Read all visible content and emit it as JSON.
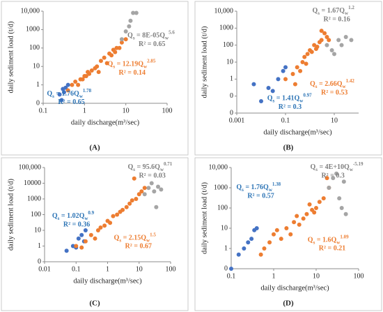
{
  "chart_data": [
    {
      "type": "scatter",
      "panel": "(A)",
      "xlabel": "daily discharge(m³/sec)",
      "ylabel": "daily sediment load (t/d)",
      "xscale": "log",
      "yscale": "log",
      "xlim": [
        0.1,
        100
      ],
      "ylim": [
        0.1,
        10000
      ],
      "xticks": [
        0.1,
        1,
        10,
        100
      ],
      "yticks": [
        {
          "value": 0.1,
          "label": "0"
        },
        1,
        10,
        100,
        1000,
        {
          "value": 10000,
          "label": "10,000"
        }
      ],
      "series": [
        {
          "color": "#4472c4",
          "x": [
            0.25,
            0.3,
            0.28,
            0.35,
            0.4,
            0.32
          ],
          "values": [
            0.3,
            0.6,
            0.15,
            0.7,
            1,
            0.4
          ],
          "equation": {
            "q": "Q",
            "s": "s",
            "coef": " = 1.76Q",
            "w": "w",
            "exp": "1.78",
            "r2": "R² = 0.65"
          }
        },
        {
          "color": "#ed7d31",
          "x": [
            0.4,
            0.5,
            0.6,
            0.8,
            1,
            1.2,
            1.5,
            2,
            2.5,
            3,
            4,
            5,
            6,
            8,
            10,
            0.7,
            1.1,
            1.8,
            3.5,
            5.5,
            2.2,
            1.3,
            0.9,
            7,
            4.5
          ],
          "values": [
            0.5,
            1,
            1.5,
            2,
            3,
            5,
            6,
            10,
            20,
            30,
            50,
            80,
            100,
            200,
            300,
            1,
            3,
            8,
            15,
            60,
            5,
            4,
            2,
            100,
            40
          ],
          "equation": {
            "q": "Q",
            "s": "s",
            "coef": " = 12.19Q",
            "w": "w",
            "exp": "2.85",
            "r2": "R² = 0.14"
          }
        },
        {
          "color": "#a5a5a5",
          "x": [
            8,
            10,
            12,
            13,
            15,
            18
          ],
          "values": [
            300,
            800,
            1500,
            3000,
            8000,
            8000
          ],
          "equation": {
            "q": "Q",
            "s": "s",
            "coef": " = 8E-05Q",
            "w": "w",
            "exp": "5.6",
            "r2": "R² = 0.65"
          }
        }
      ]
    },
    {
      "type": "scatter",
      "panel": "(B)",
      "xlabel": "daily discharge(m³/sec)",
      "ylabel": "daily sediment load (t/d)",
      "xscale": "log",
      "yscale": "log",
      "xlim": [
        0.001,
        100
      ],
      "ylim": [
        0.01,
        10000
      ],
      "xticks": [
        0.001,
        0.1,
        10
      ],
      "yticks": [
        {
          "value": 0.01,
          "label": "0"
        },
        {
          "value": 0.1,
          "label": "0"
        },
        1,
        10,
        100,
        1000,
        {
          "value": 10000,
          "label": "10,000"
        }
      ],
      "series": [
        {
          "color": "#4472c4",
          "x": [
            0.005,
            0.01,
            0.02,
            0.03,
            0.05,
            0.08,
            0.1
          ],
          "values": [
            0.5,
            0.05,
            0.3,
            0.2,
            1,
            3,
            5
          ],
          "equation": {
            "q": "Q",
            "s": "s",
            "coef": " = 1.41Q",
            "w": "w",
            "exp": "0.97",
            "r2": "R² = 0.3"
          }
        },
        {
          "color": "#ed7d31",
          "x": [
            0.1,
            0.2,
            0.3,
            0.5,
            0.8,
            1,
            1.5,
            2,
            3,
            5,
            0.4,
            0.6,
            1.2,
            2.5,
            4,
            0.25,
            0.7,
            1.8,
            3,
            6
          ],
          "values": [
            1,
            2,
            5,
            10,
            30,
            50,
            100,
            80,
            200,
            300,
            3,
            20,
            40,
            150,
            500,
            0.5,
            8,
            60,
            700,
            200
          ],
          "equation": {
            "q": "Q",
            "s": "s",
            "coef": " = 2.66Q",
            "w": "w",
            "exp": "1.42",
            "r2": "R² = 0.53"
          }
        },
        {
          "color": "#a5a5a5",
          "x": [
            5,
            8,
            10,
            15,
            20,
            30,
            50
          ],
          "values": [
            100,
            50,
            30,
            200,
            100,
            300,
            200
          ],
          "equation": {
            "q": "Q",
            "s": "s",
            "coef": " = 1.67Q",
            "w": "w",
            "exp": "1.2",
            "r2": "R² = 0.16"
          }
        }
      ]
    },
    {
      "type": "scatter",
      "panel": "(C)",
      "xlabel": "daily discharge(m³/sec)",
      "ylabel": "daily sediment load (t/d)",
      "xscale": "log",
      "yscale": "log",
      "xlim": [
        0.01,
        100
      ],
      "ylim": [
        0.1,
        100000
      ],
      "xticks": [
        0.01,
        0.1,
        1,
        10,
        100
      ],
      "yticks": [
        {
          "value": 0.1,
          "label": "0"
        },
        1,
        10,
        100,
        1000,
        10000,
        {
          "value": 100000,
          "label": "100,000"
        }
      ],
      "series": [
        {
          "color": "#4472c4",
          "x": [
            0.05,
            0.08,
            0.1,
            0.12,
            0.15,
            0.18,
            0.2
          ],
          "values": [
            0.5,
            1,
            0.8,
            3,
            5,
            2,
            10
          ],
          "equation": {
            "q": "Q",
            "s": "s",
            "coef": " = 1.02Q",
            "w": "w",
            "exp": "0.9",
            "r2": "R² = 0.36"
          }
        },
        {
          "color": "#ed7d31",
          "x": [
            0.1,
            0.2,
            0.3,
            0.5,
            0.8,
            1,
            1.5,
            2,
            3,
            5,
            8,
            10,
            15,
            0.4,
            0.6,
            1.2,
            2.5,
            4,
            6,
            12,
            0.15,
            7
          ],
          "values": [
            1,
            2,
            5,
            10,
            20,
            40,
            80,
            100,
            200,
            500,
            1000,
            2000,
            5000,
            3,
            15,
            30,
            150,
            300,
            800,
            3000,
            0.8,
            20000
          ],
          "equation": {
            "q": "Q",
            "s": "s",
            "coef": " = 2.15Q",
            "w": "w",
            "exp": "1.5",
            "r2": "R² = 0.67"
          }
        },
        {
          "color": "#a5a5a5",
          "x": [
            15,
            20,
            25,
            30,
            40,
            50,
            35
          ],
          "values": [
            2000,
            5000,
            10000,
            3000,
            6000,
            4000,
            300
          ],
          "equation": {
            "q": "Q",
            "s": "s",
            "coef": " = 95.6Q",
            "w": "w",
            "exp": "0.71",
            "r2": "R² = 0.03"
          }
        }
      ]
    },
    {
      "type": "scatter",
      "panel": "(D)",
      "xlabel": "daily discharge(m³/sec)",
      "ylabel": "daily sediment load (t/d)",
      "xscale": "log",
      "yscale": "log",
      "xlim": [
        0.1,
        100
      ],
      "ylim": [
        0.1,
        10000
      ],
      "xticks": [
        0.1,
        1,
        10,
        100
      ],
      "yticks": [
        {
          "value": 0.1,
          "label": "0"
        },
        1,
        10,
        100,
        1000,
        {
          "value": 10000,
          "label": "10,000"
        }
      ],
      "series": [
        {
          "color": "#4472c4",
          "x": [
            0.1,
            0.15,
            0.2,
            0.25,
            0.3,
            0.35,
            0.4
          ],
          "values": [
            0.1,
            0.5,
            1,
            2,
            3,
            8,
            10
          ],
          "equation": {
            "q": "Q",
            "s": "s",
            "coef": " = 1.76Q",
            "w": "w",
            "exp": "1.38",
            "r2": "R² = 0.57"
          }
        },
        {
          "color": "#ed7d31",
          "x": [
            0.5,
            0.8,
            1,
            1.5,
            2,
            3,
            4,
            5,
            6,
            8,
            10,
            12,
            15,
            20,
            0.6,
            1.2,
            2.5,
            3.5,
            7,
            9,
            18
          ],
          "values": [
            0.5,
            2,
            5,
            3,
            10,
            20,
            15,
            30,
            50,
            80,
            100,
            200,
            300,
            1000,
            1,
            8,
            5,
            40,
            150,
            60,
            3000
          ],
          "equation": {
            "q": "Q",
            "s": "s",
            "coef": " = 1.6Q",
            "w": "w",
            "exp": "1.09",
            "r2": "R² = 0.21"
          }
        },
        {
          "color": "#a5a5a5",
          "x": [
            20,
            25,
            30,
            35,
            40,
            50,
            45
          ],
          "values": [
            1000,
            3000,
            5000,
            300,
            100,
            50,
            2000
          ],
          "equation": {
            "q": "Q",
            "s": "s",
            "coef": " = 4E+10Q",
            "w": "w",
            "exp": "-5.19",
            "r2": "R² = 0.3"
          }
        }
      ]
    }
  ]
}
